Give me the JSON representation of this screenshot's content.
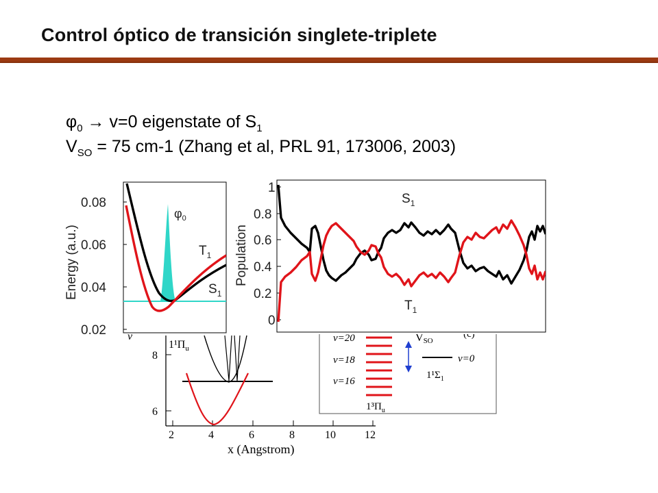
{
  "slide": {
    "title": "Control óptico de transición singlete-triplete",
    "line1": {
      "phi": "φ",
      "phi_sub": "0",
      "arrow": "→",
      "text": "v=0 eigenstate of S",
      "s_sub": "1"
    },
    "line2": {
      "v": "V",
      "v_sub": "SO",
      "text": " = 75 cm-1 (Zhang et al, PRL 91, 173006, 2003)"
    }
  },
  "colors": {
    "rule": "#9b3a12",
    "red": "#e0141a",
    "black": "#000000",
    "cyan": "#2fd6c8",
    "blue": "#1f3fd0"
  },
  "figures": {
    "back_left": {
      "ytick_labels": [
        "8",
        "6"
      ],
      "xtick_labels": [
        "2",
        "4",
        "6",
        "8",
        "10",
        "12"
      ],
      "xlabel": "x (Angstrom)",
      "curve_label": "1¹Π",
      "curve_label_sub": "u"
    },
    "back_right": {
      "levels": [
        "v=20",
        "v=18",
        "v=16"
      ],
      "v0_label": "v=0",
      "triplet_label": "1³Π",
      "triplet_sub": "u",
      "singlet_label": "1¹Σ",
      "singlet_sub": "1",
      "vso_label": "V",
      "vso_sub": "SO",
      "panel_tag": "(c)"
    },
    "energy": {
      "ylabel": "Energy (a.u.)",
      "ytick_labels": [
        "0.08",
        "0.06",
        "0.04",
        "0.02"
      ],
      "label_phi": "φ",
      "label_phi_sub": "0",
      "label_T": "T",
      "label_T_sub": "1",
      "label_S": "S",
      "label_S_sub": "1"
    },
    "population": {
      "ylabel": "Population",
      "ytick_labels": [
        "1",
        "0.8",
        "0.6",
        "0.4",
        "0.2",
        "0"
      ],
      "label_S": "S",
      "label_S_sub": "1",
      "label_T": "T",
      "label_T_sub": "1"
    }
  }
}
